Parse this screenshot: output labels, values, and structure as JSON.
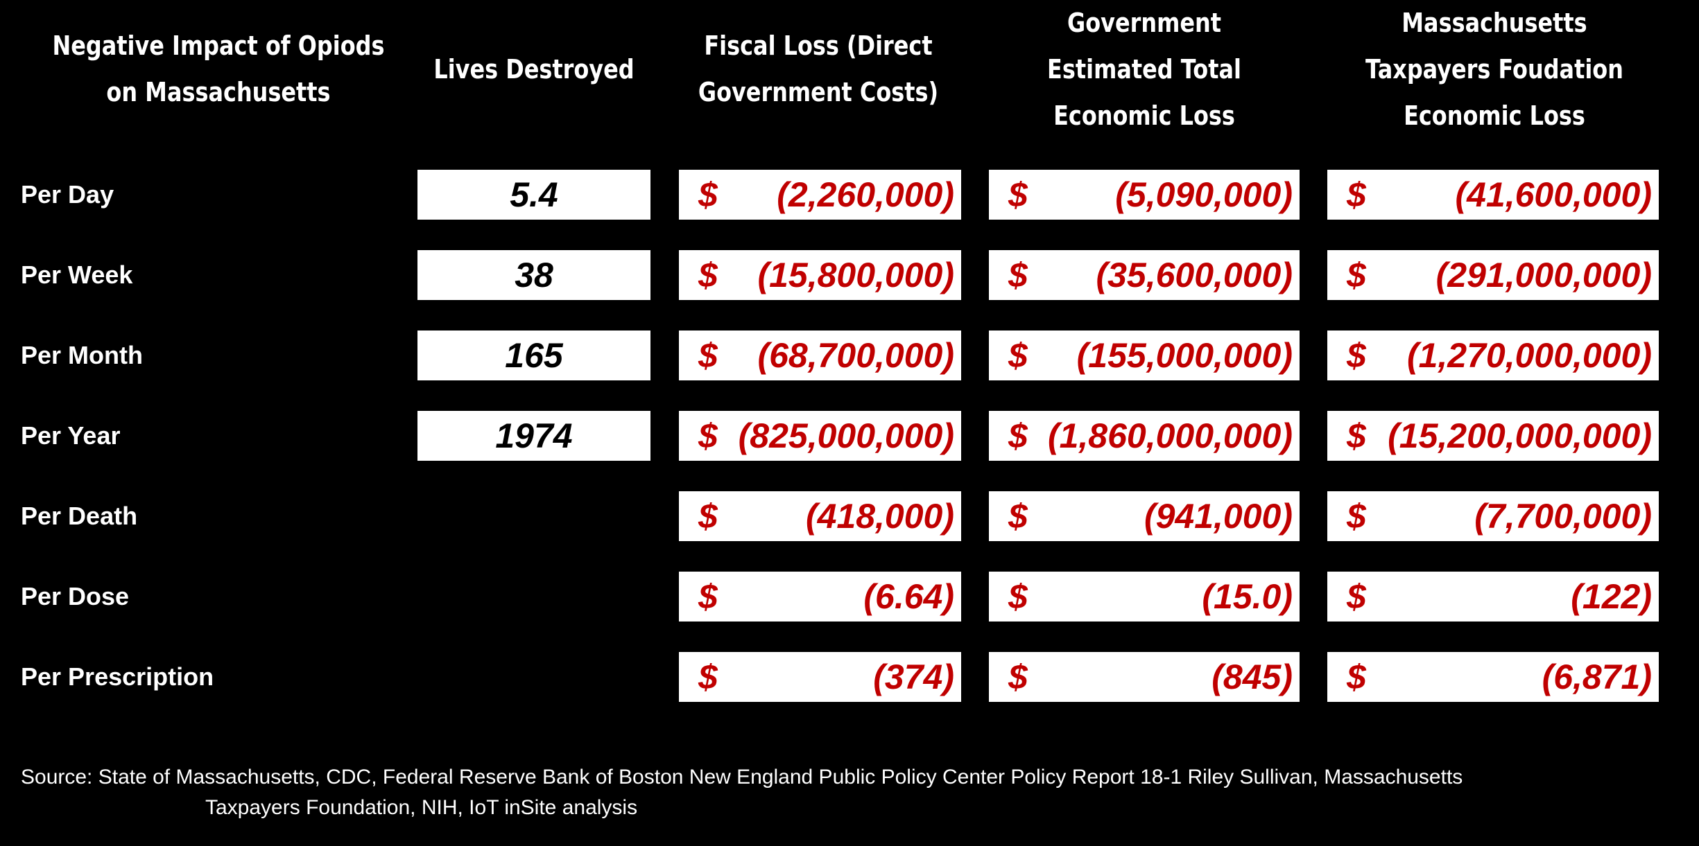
{
  "headers": {
    "label": "Negative Impact of Opiods\non Massachusetts",
    "lives": "Lives Destroyed",
    "fiscal": "Fiscal Loss (Direct\nGovernment Costs)",
    "gov": "Government\nEstimated Total\nEconomic Loss",
    "mtf": "Massachusetts\nTaxpayers Foudation\nEconomic Loss"
  },
  "currency_symbol": "$",
  "colors": {
    "background": "#000000",
    "value_box": "#ffffff",
    "negative_money": "#c00000",
    "lives_text": "#000000"
  },
  "rows": [
    {
      "label": "Per Day",
      "lives": "5.4",
      "fiscal": "(2,260,000)",
      "gov": "(5,090,000)",
      "mtf": "(41,600,000)"
    },
    {
      "label": "Per Week",
      "lives": "38",
      "fiscal": "(15,800,000)",
      "gov": "(35,600,000)",
      "mtf": "(291,000,000)"
    },
    {
      "label": "Per Month",
      "lives": "165",
      "fiscal": "(68,700,000)",
      "gov": "(155,000,000)",
      "mtf": "(1,270,000,000)"
    },
    {
      "label": "Per Year",
      "lives": "1974",
      "fiscal": "(825,000,000)",
      "gov": "(1,860,000,000)",
      "mtf": "(15,200,000,000)"
    },
    {
      "label": "Per Death",
      "lives": "",
      "fiscal": "(418,000)",
      "gov": "(941,000)",
      "mtf": "(7,700,000)"
    },
    {
      "label": "Per Dose",
      "lives": "",
      "fiscal": "(6.64)",
      "gov": "(15.0)",
      "mtf": "(122)"
    },
    {
      "label": "Per Prescription",
      "lives": "",
      "fiscal": "(374)",
      "gov": "(845)",
      "mtf": "(6,871)"
    }
  ],
  "source": {
    "line1": "Source: State of Massachusetts, CDC, Federal Reserve Bank of Boston New England Public Policy Center Policy Report 18-1 Riley Sullivan, Massachusetts",
    "line2": "Taxpayers Foundation, NIH, IoT inSite analysis"
  }
}
